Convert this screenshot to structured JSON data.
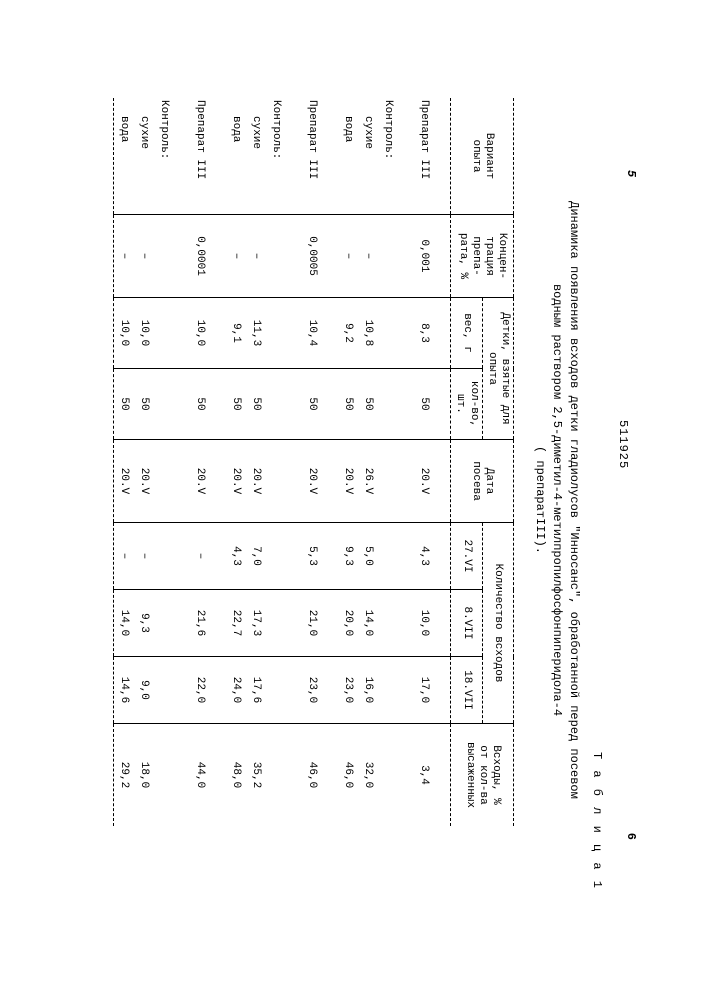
{
  "page_left": "5",
  "doc_number": "511925",
  "page_right": "6",
  "table_label": "Т а б л и ц а  1",
  "title_line1": "Динамика появления всходов детки гладиолусов \"Инносанс\", обработанной перед посевом",
  "title_line2": "водным раствором 2,5-диметил-4-метилпропилфосфонпиперидола-4",
  "title_line3": "( препаратIII).",
  "headers": {
    "variant": "Вариант\nопыта",
    "concentration": "Концен-\nтрация\nпрепа-\nрата, %",
    "detki": "Детки, взятые для\nопыта",
    "weight": "вес, г",
    "count": "кол-во,\nшт.",
    "date": "Дата\nпосева",
    "shoots": "Количество всходов",
    "d1": "27.VI",
    "d2": "8.VII",
    "d3": "18.VII",
    "yield": "Всходы, %\nот кол-ва\nвысаженных"
  },
  "rows": {
    "r0": {
      "label": "Препарат III",
      "conc": "0,001",
      "weight": "8,3",
      "count": "50",
      "date": "20.V",
      "d1": "4,3",
      "d2": "10,0",
      "d3": "17,0",
      "yield": "3,4"
    },
    "r1": {
      "label": "Контроль:"
    },
    "r2": {
      "label": "сухие",
      "conc": "–",
      "weight": "10,8",
      "count": "50",
      "date": "26.V",
      "d1": "5,0",
      "d2": "14,0",
      "d3": "16,0",
      "yield": "32,0"
    },
    "r3": {
      "label": "вода",
      "conc": "–",
      "weight": "9,2",
      "count": "50",
      "date": "20.V",
      "d1": "9,3",
      "d2": "20,0",
      "d3": "23,0",
      "yield": "46,0"
    },
    "r4": {
      "label": "Препарат III",
      "conc": "0,0005",
      "weight": "10,4",
      "count": "50",
      "date": "20.V",
      "d1": "5,3",
      "d2": "21,0",
      "d3": "23,0",
      "yield": "46,0"
    },
    "r5": {
      "label": "Контроль:"
    },
    "r6": {
      "label": "сухие",
      "conc": "–",
      "weight": "11,3",
      "count": "50",
      "date": "20.V",
      "d1": "7,0",
      "d2": "17,3",
      "d3": "17,6",
      "yield": "35,2"
    },
    "r7": {
      "label": "вода",
      "conc": "–",
      "weight": "9,1",
      "count": "50",
      "date": "20.V",
      "d1": "4,3",
      "d2": "22,7",
      "d3": "24,0",
      "yield": "48,0"
    },
    "r8": {
      "label": "Препарат III",
      "conc": "0,0001",
      "weight": "10,0",
      "count": "50",
      "date": "20.V",
      "d1": "–",
      "d2": "21,6",
      "d3": "22,0",
      "yield": "44,0"
    },
    "r9": {
      "label": "Контроль:"
    },
    "r10": {
      "label": "сухие",
      "conc": "–",
      "weight": "10,0",
      "count": "50",
      "date": "20.V",
      "d1": "–",
      "d2": "9,3",
      "d3": "9,0",
      "yield": "18,0"
    },
    "r11": {
      "label": "вода",
      "conc": "–",
      "weight": "10,0",
      "count": "50",
      "date": "20.V",
      "d1": "–",
      "d2": "14,0",
      "d3": "14,6",
      "yield": "29,2"
    }
  }
}
